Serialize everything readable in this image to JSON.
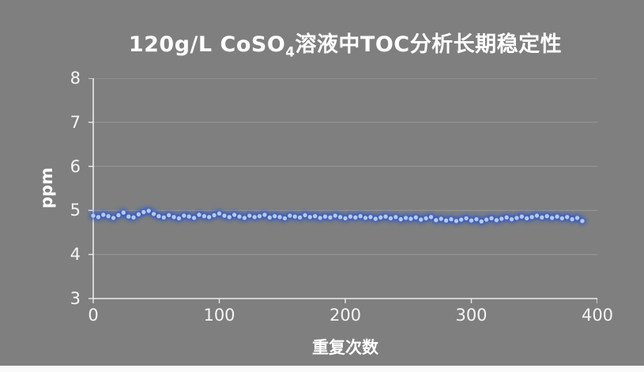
{
  "colors": {
    "background": "#7f7f7f",
    "grid": "#989898",
    "axis": "#ebebeb",
    "text": "#ffffff",
    "dot": "#b6c8ea",
    "glow": "#1d4fd7"
  },
  "chart": {
    "title": {
      "prefix": "120g/L CoSO",
      "sub": "4",
      "suffix": "溶液中TOC分析长期稳定性"
    },
    "ylabel": "ppm",
    "xlabel": "重复次数"
  },
  "chart_data": {
    "type": "scatter",
    "title": "120g/L CoSO4溶液中TOC分析长期稳定性",
    "xlabel": "重复次数",
    "ylabel": "ppm",
    "xlim": [
      0,
      400
    ],
    "ylim": [
      3,
      8
    ],
    "x_ticks": [
      0,
      100,
      200,
      300,
      400
    ],
    "y_ticks": [
      3,
      4,
      5,
      6,
      7,
      8
    ],
    "grid": "horizontal",
    "legend": "none",
    "series": [
      {
        "name": "TOC",
        "points": [
          [
            0,
            4.88
          ],
          [
            4,
            4.85
          ],
          [
            8,
            4.9
          ],
          [
            12,
            4.87
          ],
          [
            16,
            4.83
          ],
          [
            20,
            4.89
          ],
          [
            24,
            4.95
          ],
          [
            28,
            4.86
          ],
          [
            32,
            4.84
          ],
          [
            36,
            4.91
          ],
          [
            40,
            4.96
          ],
          [
            44,
            4.99
          ],
          [
            48,
            4.92
          ],
          [
            52,
            4.87
          ],
          [
            56,
            4.84
          ],
          [
            60,
            4.89
          ],
          [
            64,
            4.85
          ],
          [
            68,
            4.82
          ],
          [
            72,
            4.88
          ],
          [
            76,
            4.86
          ],
          [
            80,
            4.83
          ],
          [
            84,
            4.9
          ],
          [
            88,
            4.87
          ],
          [
            92,
            4.85
          ],
          [
            96,
            4.89
          ],
          [
            100,
            4.93
          ],
          [
            104,
            4.88
          ],
          [
            108,
            4.85
          ],
          [
            112,
            4.9
          ],
          [
            116,
            4.86
          ],
          [
            120,
            4.83
          ],
          [
            124,
            4.88
          ],
          [
            128,
            4.85
          ],
          [
            132,
            4.87
          ],
          [
            136,
            4.9
          ],
          [
            140,
            4.84
          ],
          [
            144,
            4.87
          ],
          [
            148,
            4.85
          ],
          [
            152,
            4.82
          ],
          [
            156,
            4.88
          ],
          [
            160,
            4.86
          ],
          [
            164,
            4.84
          ],
          [
            168,
            4.89
          ],
          [
            172,
            4.85
          ],
          [
            176,
            4.87
          ],
          [
            180,
            4.83
          ],
          [
            184,
            4.86
          ],
          [
            188,
            4.84
          ],
          [
            192,
            4.88
          ],
          [
            196,
            4.85
          ],
          [
            200,
            4.82
          ],
          [
            204,
            4.86
          ],
          [
            208,
            4.84
          ],
          [
            212,
            4.87
          ],
          [
            216,
            4.83
          ],
          [
            220,
            4.85
          ],
          [
            224,
            4.81
          ],
          [
            228,
            4.84
          ],
          [
            232,
            4.86
          ],
          [
            236,
            4.82
          ],
          [
            240,
            4.85
          ],
          [
            244,
            4.8
          ],
          [
            248,
            4.83
          ],
          [
            252,
            4.81
          ],
          [
            256,
            4.84
          ],
          [
            260,
            4.79
          ],
          [
            264,
            4.82
          ],
          [
            268,
            4.85
          ],
          [
            272,
            4.78
          ],
          [
            276,
            4.81
          ],
          [
            280,
            4.77
          ],
          [
            284,
            4.8
          ],
          [
            288,
            4.76
          ],
          [
            292,
            4.79
          ],
          [
            296,
            4.82
          ],
          [
            300,
            4.77
          ],
          [
            304,
            4.8
          ],
          [
            308,
            4.75
          ],
          [
            312,
            4.79
          ],
          [
            316,
            4.82
          ],
          [
            320,
            4.78
          ],
          [
            324,
            4.81
          ],
          [
            328,
            4.84
          ],
          [
            332,
            4.8
          ],
          [
            336,
            4.83
          ],
          [
            340,
            4.86
          ],
          [
            344,
            4.82
          ],
          [
            348,
            4.85
          ],
          [
            352,
            4.88
          ],
          [
            356,
            4.84
          ],
          [
            360,
            4.87
          ],
          [
            364,
            4.83
          ],
          [
            368,
            4.86
          ],
          [
            372,
            4.82
          ],
          [
            376,
            4.85
          ],
          [
            380,
            4.8
          ],
          [
            384,
            4.83
          ],
          [
            388,
            4.76
          ]
        ]
      }
    ]
  }
}
